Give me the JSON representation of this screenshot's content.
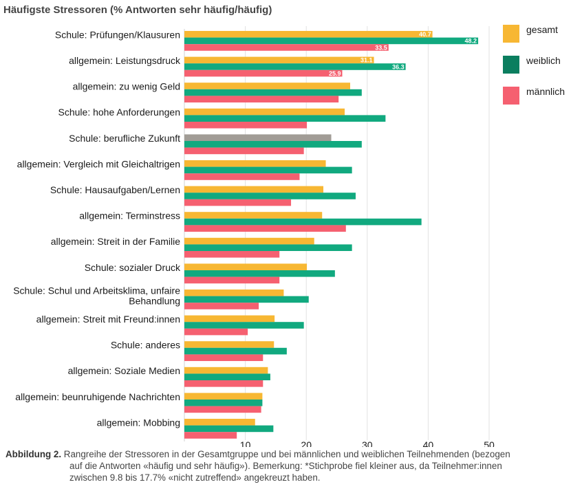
{
  "chart_data": {
    "type": "bar",
    "orientation": "horizontal",
    "title": "Häufigste Stressoren (% Antworten sehr häufig/häufig)",
    "categories": [
      "Schule: Prüfungen/Klausuren",
      "allgemein: Leistungsdruck",
      "allgemein: zu wenig Geld",
      "Schule: hohe Anforderungen",
      "Schule: berufliche Zukunft",
      "allgemein: Vergleich mit Gleichaltrigen",
      "Schule: Hausaufgaben/Lernen",
      "allgemein: Terminstress",
      "allgemein: Streit in der Familie",
      "Schule: sozialer Druck",
      "Schule: Schul und Arbeitsklima, unfaire Behandlung",
      "allgemein: Streit mit Freund:innen",
      "Schule: anderes",
      "allgemein: Soziale Medien",
      "allgemein: beunruhigende Nachrichten",
      "allgemein: Mobbing"
    ],
    "series": [
      {
        "name": "gesamt",
        "color": "#f7b733",
        "values": [
          40.7,
          31.1,
          27.2,
          26.3,
          24.1,
          23.2,
          22.8,
          22.6,
          21.3,
          20.1,
          16.3,
          14.8,
          14.7,
          13.7,
          12.8,
          11.6
        ],
        "labels": [
          "40.7",
          "31.1",
          "",
          "",
          "",
          "",
          "",
          "",
          "",
          "",
          "",
          "",
          "",
          "",
          "",
          ""
        ],
        "highlight_color": "#a19c96",
        "highlight_index": 4
      },
      {
        "name": "weiblich",
        "color": "#11a97f",
        "values": [
          48.2,
          36.3,
          29.1,
          33.0,
          29.1,
          27.5,
          28.1,
          38.9,
          27.5,
          24.7,
          20.4,
          19.6,
          16.8,
          14.1,
          12.8,
          14.6
        ],
        "labels": [
          "48.2",
          "36.3",
          "",
          "",
          "",
          "",
          "",
          "",
          "",
          "",
          "",
          "",
          "",
          "",
          "",
          ""
        ]
      },
      {
        "name": "männlich",
        "color": "#f56070",
        "values": [
          33.5,
          25.9,
          25.3,
          20.1,
          19.6,
          18.9,
          17.5,
          26.5,
          15.6,
          15.6,
          12.2,
          10.4,
          12.9,
          12.9,
          12.6,
          8.6
        ],
        "labels": [
          "33.5",
          "25.9",
          "",
          "",
          "",
          "",
          "",
          "",
          "",
          "",
          "",
          "",
          "",
          "",
          "",
          ""
        ]
      }
    ],
    "xlim": [
      0,
      50
    ],
    "xticks": [
      "10",
      "20",
      "30",
      "40",
      "50"
    ],
    "xtick_values": [
      10,
      20,
      30,
      40,
      50
    ],
    "xlabel": "",
    "ylabel": "",
    "grid": "vertical",
    "legend": [
      {
        "label": "gesamt",
        "color": "#f7b733"
      },
      {
        "label": "weiblich",
        "color": "#0b7e5f"
      },
      {
        "label": "männlich",
        "color": "#f56070"
      }
    ],
    "legend_position": "top-right"
  },
  "caption": {
    "lead": "Abbildung 2.",
    "line1": " Rangreihe der Stressoren in der Gesamtgruppe und bei männlichen und weiblichen Teilnehmenden (bezogen",
    "line2": "auf die Antworten «häufig und sehr häufig»). Bemerkung: *Stichprobe fiel kleiner aus, da Teilnehmer:innen",
    "line3": "zwischen 9.8  bis 17.7% «nicht zutreffend» angekreuzt haben."
  }
}
